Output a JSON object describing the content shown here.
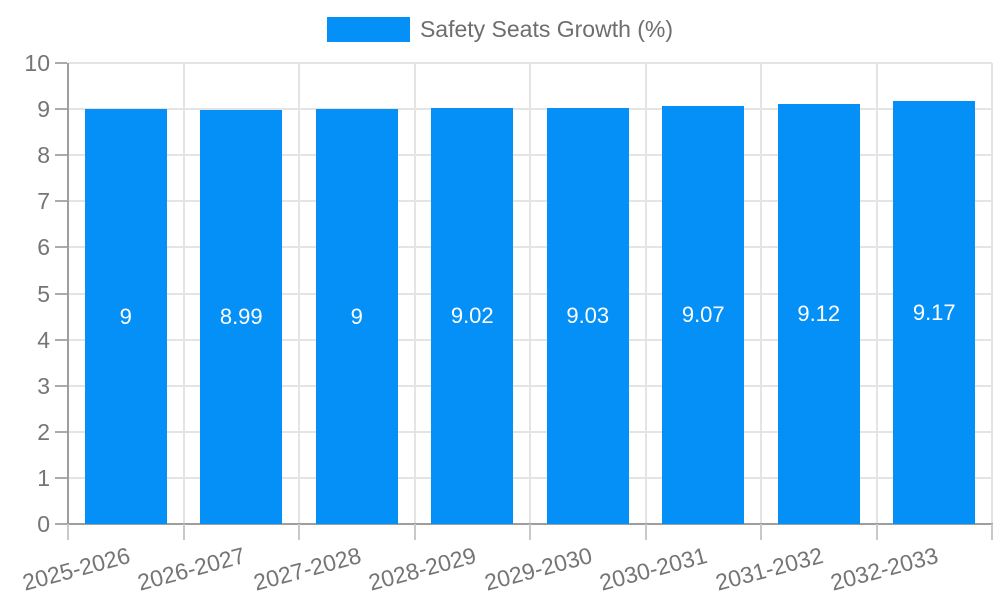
{
  "chart_data": {
    "type": "bar",
    "title": "",
    "legend_label": "Safety Seats Growth (%)",
    "legend_position": "top-center",
    "categories": [
      "2025-2026",
      "2026-2027",
      "2027-2028",
      "2028-2029",
      "2029-2030",
      "2030-2031",
      "2031-2032",
      "2032-2033"
    ],
    "values": [
      9,
      8.99,
      9,
      9.02,
      9.03,
      9.07,
      9.12,
      9.17
    ],
    "value_labels": [
      "9",
      "8.99",
      "9",
      "9.02",
      "9.03",
      "9.07",
      "9.12",
      "9.17"
    ],
    "xlabel": "",
    "ylabel": "",
    "ylim": [
      0,
      10
    ],
    "ytick_step": 1,
    "grid": true,
    "x_label_rotation_deg": -15,
    "colors": {
      "bar": "#0590f8",
      "bar_value_text": "#ffffff",
      "axis_line": "#9e9e9e",
      "grid_line": "#e4e4e4",
      "tick_text": "#757575",
      "legend_text": "#6e6e6e"
    }
  }
}
